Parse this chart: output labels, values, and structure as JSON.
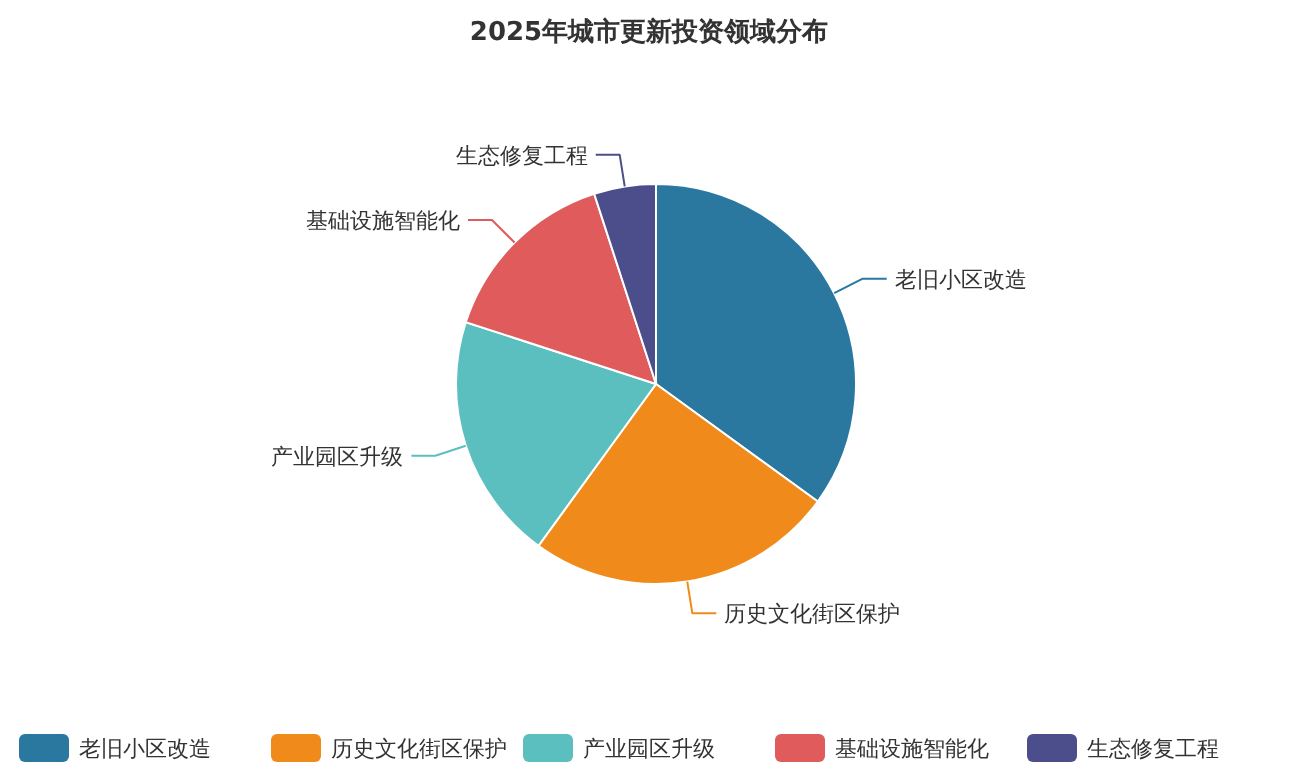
{
  "chart_data": {
    "type": "pie",
    "title": "2025年城市更新投资领域分布",
    "categories": [
      "老旧小区改造",
      "历史文化街区保护",
      "产业园区升级",
      "基础设施智能化",
      "生态修复工程"
    ],
    "values": [
      35,
      25,
      20,
      15,
      5
    ],
    "colors": [
      "#2a77a0",
      "#f08a1b",
      "#5bbfbf",
      "#e05b5b",
      "#4b4e8a"
    ],
    "legend": "bottom"
  }
}
